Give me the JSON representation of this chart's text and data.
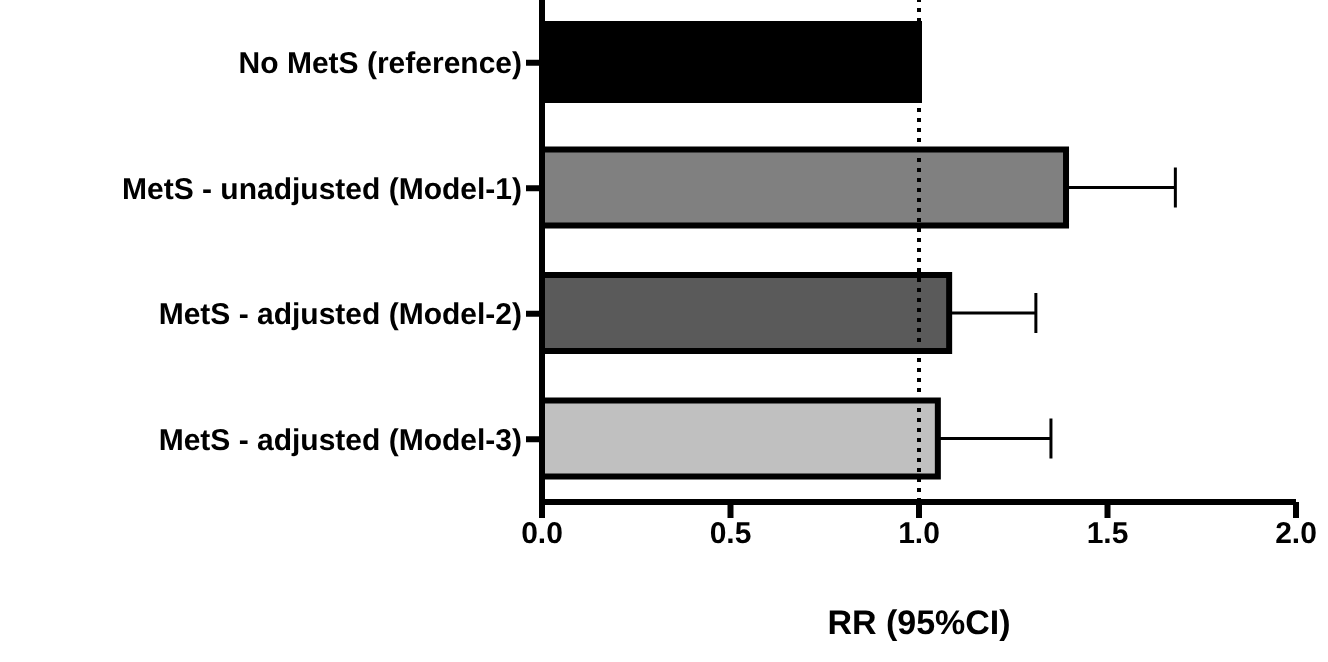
{
  "chart_data": {
    "type": "bar",
    "orientation": "horizontal",
    "xlabel": "RR (95%CI)",
    "categories": [
      "No MetS (reference)",
      "MetS - unadjusted (Model-1)",
      "MetS - adjusted (Model-2)",
      "MetS - adjusted (Model-3)"
    ],
    "values": [
      1.0,
      1.39,
      1.08,
      1.05
    ],
    "errors": [
      null,
      [
        1.39,
        1.68
      ],
      [
        1.08,
        1.31
      ],
      [
        1.05,
        1.35
      ]
    ],
    "colors": [
      "#000000",
      "#808080",
      "#5a5a5a",
      "#c0c0c0"
    ],
    "xlim": [
      0,
      2
    ],
    "xticks": [
      {
        "value": 0,
        "label": "0.0"
      },
      {
        "value": 0.5,
        "label": "0.5"
      },
      {
        "value": 1,
        "label": "1.0"
      },
      {
        "value": 1.5,
        "label": "1.5"
      },
      {
        "value": 2,
        "label": "2.0"
      }
    ],
    "ref_lines": [
      {
        "axis": "x",
        "value": 1,
        "label": null,
        "line_style": "dotted",
        "color": "#000000"
      }
    ],
    "grid": false,
    "legend": false
  }
}
